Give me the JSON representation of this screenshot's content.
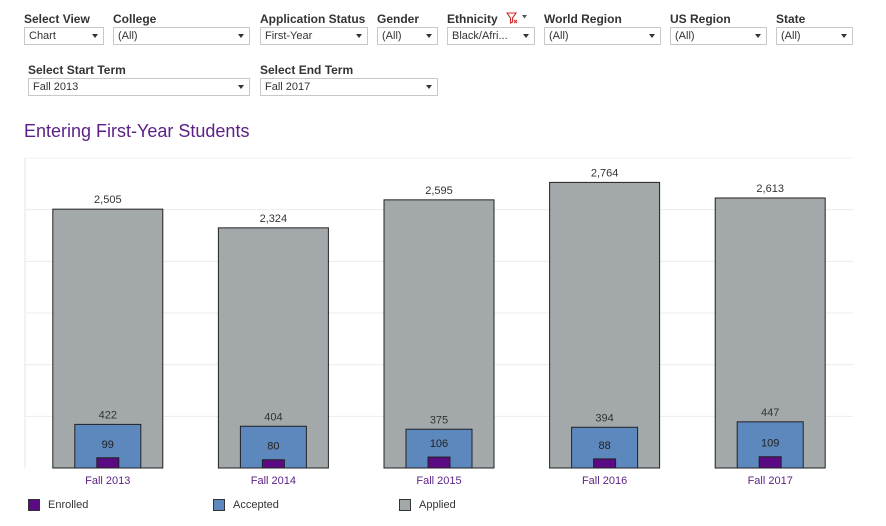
{
  "filters": [
    {
      "label": "Select View",
      "value": "Chart"
    },
    {
      "label": "College",
      "value": "(All)"
    },
    {
      "label": "Application Status",
      "value": "First-Year"
    },
    {
      "label": "Gender",
      "value": "(All)"
    },
    {
      "label": "Ethnicity",
      "value": "Black/Afri...",
      "icon": "filter-clear-icon"
    },
    {
      "label": "World Region",
      "value": "(All)"
    },
    {
      "label": "US Region",
      "value": "(All)"
    },
    {
      "label": "State",
      "value": "(All)"
    },
    {
      "label": "Select Start Term",
      "value": "Fall 2013"
    },
    {
      "label": "Select End Term",
      "value": "Fall 2017"
    }
  ],
  "page": {
    "title": "Entering First-Year Students"
  },
  "colors": {
    "title": "#5b1f87",
    "enrolled": "#5a0a82",
    "accepted": "#5d88bd",
    "applied": "#a3a8ab",
    "filter_clear_icon": "#d12a2a"
  },
  "chart_data": {
    "type": "bar",
    "layout": "overlapped",
    "categories": [
      "Fall 2013",
      "Fall 2014",
      "Fall 2015",
      "Fall 2016",
      "Fall 2017"
    ],
    "series": [
      {
        "name": "Applied",
        "values": [
          2505,
          2324,
          2595,
          2764,
          2613
        ],
        "color": "#a3a8ab"
      },
      {
        "name": "Accepted",
        "values": [
          422,
          404,
          375,
          394,
          447
        ],
        "color": "#5d88bd"
      },
      {
        "name": "Enrolled",
        "values": [
          99,
          80,
          106,
          88,
          109
        ],
        "color": "#5a0a82"
      }
    ],
    "value_labels": {
      "Applied": [
        "2,505",
        "2,324",
        "2,595",
        "2,764",
        "2,613"
      ],
      "Accepted": [
        "422",
        "404",
        "375",
        "394",
        "447"
      ],
      "Enrolled": [
        "99",
        "80",
        "106",
        "88",
        "109"
      ]
    },
    "ylim": [
      0,
      3000
    ],
    "y_axis_visible": false,
    "grid": "horizontal",
    "legend": {
      "position": "bottom",
      "items": [
        {
          "name": "Enrolled",
          "color": "#5a0a82"
        },
        {
          "name": "Accepted",
          "color": "#5d88bd"
        },
        {
          "name": "Applied",
          "color": "#a3a8ab"
        }
      ]
    }
  }
}
